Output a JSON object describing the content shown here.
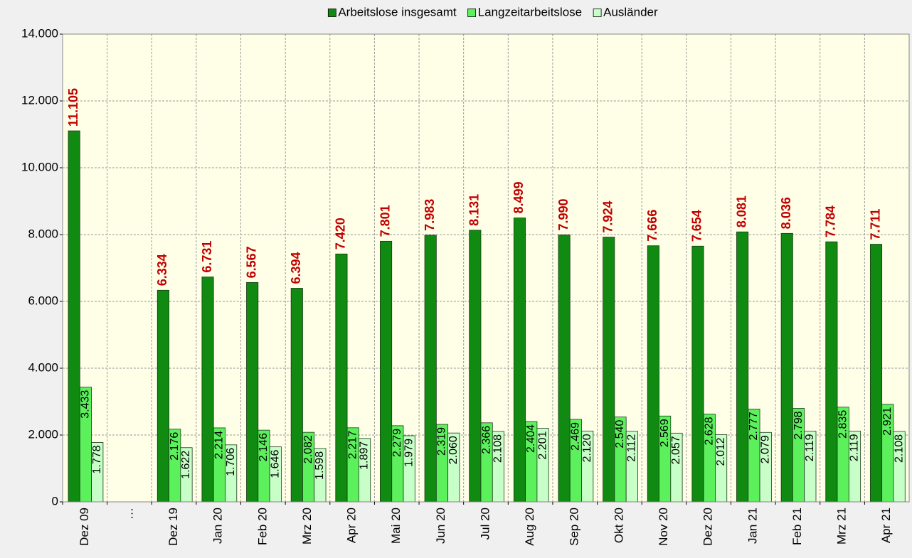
{
  "chart_data": {
    "type": "bar",
    "legend": "top",
    "grid": true,
    "categories": [
      "Dez 09",
      "…",
      "Dez 19",
      "Jan 20",
      "Feb 20",
      "Mrz 20",
      "Apr 20",
      "Mai 20",
      "Jun 20",
      "Jul 20",
      "Aug 20",
      "Sep 20",
      "Okt 20",
      "Nov 20",
      "Dez 20",
      "Jan 21",
      "Feb 21",
      "Mrz 21",
      "Apr 21"
    ],
    "series": [
      {
        "name": "Arbeitslose insgesamt",
        "color": "#108a10",
        "values": [
          11105,
          null,
          6334,
          6731,
          6567,
          6394,
          7420,
          7801,
          7983,
          8131,
          8499,
          7990,
          7924,
          7666,
          7654,
          8081,
          8036,
          7784,
          7711
        ],
        "value_labels": [
          "11.105",
          null,
          "6.334",
          "6.731",
          "6.567",
          "6.394",
          "7.420",
          "7.801",
          "7.983",
          "8.131",
          "8.499",
          "7.990",
          "7.924",
          "7.666",
          "7.654",
          "8.081",
          "8.036",
          "7.784",
          "7.711"
        ]
      },
      {
        "name": "Langzeitarbeitslose",
        "color": "#5cf05c",
        "values": [
          3433,
          null,
          2176,
          2214,
          2146,
          2082,
          2217,
          2279,
          2319,
          2366,
          2404,
          2469,
          2540,
          2569,
          2628,
          2777,
          2798,
          2835,
          2921
        ],
        "value_labels": [
          "3.433",
          null,
          "2.176",
          "2.214",
          "2.146",
          "2.082",
          "2.217",
          "2.279",
          "2.319",
          "2.366",
          "2.404",
          "2.469",
          "2.540",
          "2.569",
          "2.628",
          "2.777",
          "2.798",
          "2.835",
          "2.921"
        ]
      },
      {
        "name": "Ausländer",
        "color": "#c8ffc8",
        "values": [
          1778,
          null,
          1622,
          1706,
          1646,
          1598,
          1897,
          1979,
          2060,
          2108,
          2201,
          2120,
          2112,
          2057,
          2012,
          2079,
          2119,
          2119,
          2108
        ],
        "value_labels": [
          "1.778",
          null,
          "1.622",
          "1.706",
          "1.646",
          "1.598",
          "1.897",
          "1.979",
          "2.060",
          "2.108",
          "2.201",
          "2.120",
          "2.112",
          "2.057",
          "2.012",
          "2.079",
          "2.119",
          "2.119",
          "2.108"
        ]
      }
    ],
    "ylim": [
      0,
      14000
    ],
    "yticks": [
      0,
      {
        "value": 2000,
        "label": "2.000"
      },
      {
        "value": 4000,
        "label": "4.000"
      },
      {
        "value": 6000,
        "label": "6.000"
      },
      {
        "value": 8000,
        "label": "8.000"
      },
      {
        "value": 10000,
        "label": "10.000"
      },
      {
        "value": 12000,
        "label": "12.000"
      },
      {
        "value": 14000,
        "label": "14.000"
      }
    ]
  }
}
